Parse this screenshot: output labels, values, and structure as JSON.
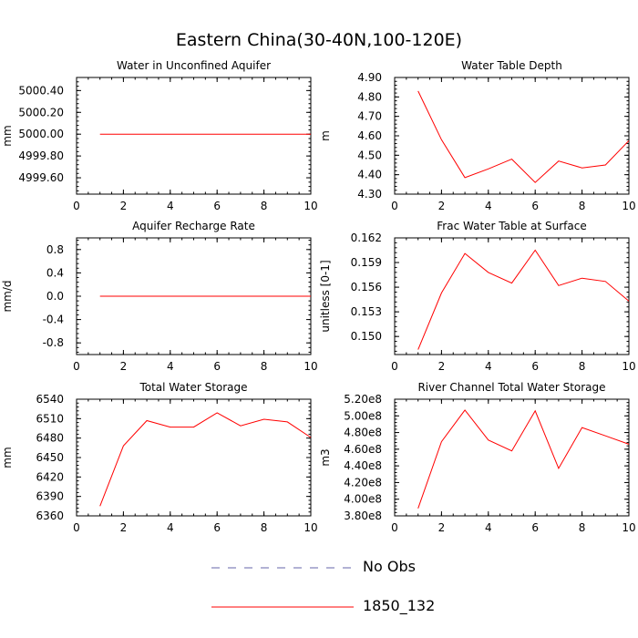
{
  "title": "Eastern China(30-40N,100-120E)",
  "colors": {
    "model": "#ff0000",
    "obs": "#6666aa",
    "axis": "#000000"
  },
  "legend": [
    {
      "label": "No Obs",
      "style": "dashed",
      "color": "#6666aa"
    },
    {
      "label": "1850_132",
      "style": "solid",
      "color": "#ff0000"
    }
  ],
  "chart_data": [
    {
      "type": "line",
      "title": "Water in Unconfined Aquifer",
      "ylabel": "mm",
      "xlim": [
        0,
        10
      ],
      "xticks": [
        "0",
        "2",
        "4",
        "6",
        "8",
        "10"
      ],
      "ylim": [
        4999.45,
        5000.52
      ],
      "yticks": [
        4999.6,
        4999.8,
        5000.0,
        5000.2,
        5000.4
      ],
      "yticklabels": [
        "4999.60",
        "4999.80",
        "5000.00",
        "5000.20",
        "5000.40"
      ],
      "x": [
        1,
        2,
        3,
        4,
        5,
        6,
        7,
        8,
        9,
        10
      ],
      "values": [
        5000,
        5000,
        5000,
        5000,
        5000,
        5000,
        5000,
        5000,
        5000,
        5000
      ]
    },
    {
      "type": "line",
      "title": "Water Table Depth",
      "ylabel": "m",
      "xlim": [
        0,
        10
      ],
      "xticks": [
        "0",
        "2",
        "4",
        "6",
        "8",
        "10"
      ],
      "ylim": [
        4.3,
        4.9
      ],
      "yticks": [
        4.3,
        4.4,
        4.5,
        4.6,
        4.7,
        4.8,
        4.9
      ],
      "yticklabels": [
        "4.30",
        "4.40",
        "4.50",
        "4.60",
        "4.70",
        "4.80",
        "4.90"
      ],
      "x": [
        1,
        2,
        3,
        4,
        5,
        6,
        7,
        8,
        9,
        10
      ],
      "values": [
        4.83,
        4.58,
        4.385,
        4.43,
        4.48,
        4.36,
        4.47,
        4.435,
        4.45,
        4.575
      ]
    },
    {
      "type": "line",
      "title": "Aquifer Recharge Rate",
      "ylabel": "mm/d",
      "xlim": [
        0,
        10
      ],
      "xticks": [
        "0",
        "2",
        "4",
        "6",
        "8",
        "10"
      ],
      "ylim": [
        -1.0,
        1.0
      ],
      "yticks": [
        -0.8,
        -0.4,
        0.0,
        0.4,
        0.8
      ],
      "yticklabels": [
        "-0.8",
        "-0.4",
        "0.0",
        "0.4",
        "0.8"
      ],
      "x": [
        1,
        2,
        3,
        4,
        5,
        6,
        7,
        8,
        9,
        10
      ],
      "values": [
        0,
        0,
        0,
        0,
        0,
        0,
        0,
        0,
        0,
        0
      ]
    },
    {
      "type": "line",
      "title": "Frac Water Table at Surface",
      "ylabel": "unitless [0-1]",
      "xlim": [
        0,
        10
      ],
      "xticks": [
        "0",
        "2",
        "4",
        "6",
        "8",
        "10"
      ],
      "ylim": [
        0.1478,
        0.162
      ],
      "yticks": [
        0.15,
        0.153,
        0.156,
        0.159,
        0.162
      ],
      "yticklabels": [
        "0.150",
        "0.153",
        "0.156",
        "0.159",
        "0.162"
      ],
      "x": [
        1,
        2,
        3,
        4,
        5,
        6,
        7,
        8,
        9,
        10
      ],
      "values": [
        0.1484,
        0.1553,
        0.1601,
        0.1578,
        0.1565,
        0.1605,
        0.1562,
        0.1571,
        0.1567,
        0.1543
      ]
    },
    {
      "type": "line",
      "title": "Total Water Storage",
      "ylabel": "mm",
      "xlim": [
        0,
        10
      ],
      "xticks": [
        "0",
        "2",
        "4",
        "6",
        "8",
        "10"
      ],
      "ylim": [
        6360,
        6540
      ],
      "yticks": [
        6360,
        6390,
        6420,
        6450,
        6480,
        6510,
        6540
      ],
      "yticklabels": [
        "6360",
        "6390",
        "6420",
        "6450",
        "6480",
        "6510",
        "6540"
      ],
      "x": [
        1,
        2,
        3,
        4,
        5,
        6,
        7,
        8,
        9,
        10
      ],
      "values": [
        6375,
        6468,
        6507,
        6497,
        6497,
        6519,
        6499,
        6509,
        6505,
        6481
      ]
    },
    {
      "type": "line",
      "title": "River Channel Total Water Storage",
      "ylabel": "m3",
      "xlim": [
        0,
        10
      ],
      "xticks": [
        "0",
        "2",
        "4",
        "6",
        "8",
        "10"
      ],
      "ylim": [
        380000000,
        520000000
      ],
      "yticks": [
        380000000,
        400000000,
        420000000,
        440000000,
        460000000,
        480000000,
        500000000,
        520000000
      ],
      "yticklabels": [
        "3.80e8",
        "4.00e8",
        "4.20e8",
        "4.40e8",
        "4.60e8",
        "4.80e8",
        "5.00e8",
        "5.20e8"
      ],
      "x": [
        1,
        2,
        3,
        4,
        5,
        6,
        7,
        8,
        9,
        10
      ],
      "values": [
        389000000,
        469000000,
        507000000,
        471000000,
        458000000,
        506000000,
        437000000,
        486000000,
        476000000,
        466000000
      ]
    }
  ]
}
